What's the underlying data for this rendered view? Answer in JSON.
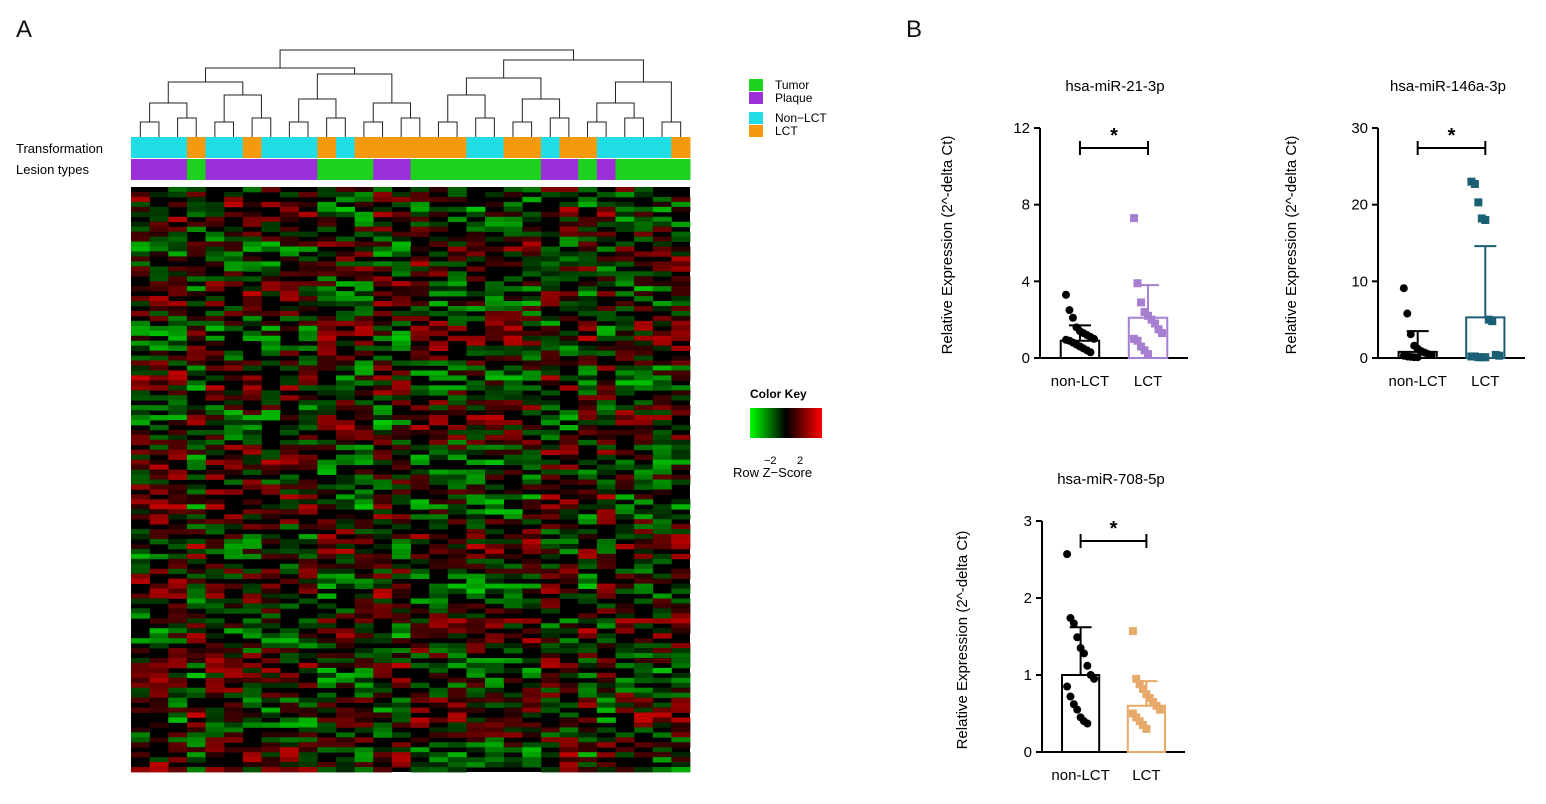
{
  "panels": {
    "a": "A",
    "b": "B"
  },
  "heatmap": {
    "row_labels": {
      "transformation": "Transformation",
      "lesion": "Lesion types"
    },
    "legend": [
      {
        "label": "Tumor",
        "color": "#1fd11f"
      },
      {
        "label": "Plaque",
        "color": "#9b30d8"
      },
      {
        "label": "Non−LCT",
        "color": "#22dde6"
      },
      {
        "label": "LCT",
        "color": "#f59a0c"
      }
    ],
    "color_key": {
      "title": "Color Key",
      "ticks": [
        "−2",
        "2"
      ],
      "caption": "Row Z−Score",
      "low": "#00ff00",
      "mid": "#000000",
      "high": "#ff0000"
    }
  },
  "chart_data": [
    {
      "type": "heatmap",
      "title": "",
      "columns": 30,
      "transformation": [
        "Non-LCT",
        "Non-LCT",
        "Non-LCT",
        "LCT",
        "Non-LCT",
        "Non-LCT",
        "LCT",
        "Non-LCT",
        "Non-LCT",
        "Non-LCT",
        "LCT",
        "Non-LCT",
        "LCT",
        "LCT",
        "LCT",
        "LCT",
        "LCT",
        "LCT",
        "Non-LCT",
        "Non-LCT",
        "LCT",
        "LCT",
        "Non-LCT",
        "LCT",
        "LCT",
        "Non-LCT",
        "Non-LCT",
        "Non-LCT",
        "Non-LCT",
        "LCT"
      ],
      "lesion_types": [
        "Plaque",
        "Plaque",
        "Plaque",
        "Tumor",
        "Plaque",
        "Plaque",
        "Plaque",
        "Plaque",
        "Plaque",
        "Plaque",
        "Tumor",
        "Tumor",
        "Tumor",
        "Plaque",
        "Plaque",
        "Tumor",
        "Tumor",
        "Tumor",
        "Tumor",
        "Tumor",
        "Tumor",
        "Tumor",
        "Plaque",
        "Plaque",
        "Tumor",
        "Plaque",
        "Tumor",
        "Tumor",
        "Tumor",
        "Tumor"
      ],
      "z_range": [
        -2,
        2
      ]
    },
    {
      "type": "bar",
      "title": "hsa-miR-21-3p",
      "ylabel": "Relative  Expression (2^-delta Ct)",
      "categories": [
        "non-LCT",
        "LCT"
      ],
      "values": [
        0.9,
        2.1
      ],
      "sd": [
        0.8,
        1.7
      ],
      "ylim": [
        0,
        12
      ],
      "yticks": [
        "0",
        "4",
        "8",
        "12"
      ],
      "significance": "*",
      "bar_colors": [
        "#000000",
        "#a67fd0"
      ],
      "points": [
        [
          3.3,
          2.5,
          2.1,
          1.6,
          1.4,
          1.3,
          1.2,
          1.1,
          1.0,
          0.95,
          0.9,
          0.8,
          0.7,
          0.6,
          0.5,
          0.4,
          0.3
        ],
        [
          7.3,
          3.9,
          2.9,
          2.4,
          2.2,
          2.0,
          1.8,
          1.5,
          1.3,
          1.0,
          0.9,
          0.6,
          0.4,
          0.2
        ]
      ]
    },
    {
      "type": "bar",
      "title": "hsa-miR-146a-3p",
      "ylabel": "Relative  Expression (2^-delta Ct)",
      "categories": [
        "non-LCT",
        "LCT"
      ],
      "values": [
        0.8,
        5.3
      ],
      "sd": [
        2.7,
        9.3
      ],
      "ylim": [
        0,
        30
      ],
      "yticks": [
        "0",
        "10",
        "20",
        "30"
      ],
      "significance": "*",
      "bar_colors": [
        "#000000",
        "#1a5f73"
      ],
      "points": [
        [
          9.1,
          5.8,
          3.1,
          1.6,
          1.2,
          0.9,
          0.7,
          0.5,
          0.4,
          0.3,
          0.2,
          0.15,
          0.1,
          0.1
        ],
        [
          23.0,
          22.7,
          20.3,
          18.2,
          18.0,
          5.0,
          4.8,
          0.4,
          0.3,
          0.2,
          0.2,
          0.1,
          0.1,
          0.1
        ]
      ]
    },
    {
      "type": "bar",
      "title": "hsa-miR-708-5p",
      "ylabel": "Relative  Expression (2^-delta Ct)",
      "categories": [
        "non-LCT",
        "LCT"
      ],
      "values": [
        1.0,
        0.6
      ],
      "sd": [
        0.62,
        0.32
      ],
      "ylim": [
        0,
        3
      ],
      "yticks": [
        "0",
        "1",
        "2",
        "3"
      ],
      "significance": "*",
      "bar_colors": [
        "#000000",
        "#e8aa6a"
      ],
      "points": [
        [
          2.57,
          1.74,
          1.67,
          1.49,
          1.35,
          1.28,
          1.12,
          1.0,
          0.95,
          0.85,
          0.72,
          0.62,
          0.55,
          0.45,
          0.4,
          0.37
        ],
        [
          1.57,
          0.95,
          0.88,
          0.82,
          0.75,
          0.7,
          0.65,
          0.6,
          0.55,
          0.5,
          0.45,
          0.4,
          0.35,
          0.3
        ]
      ]
    }
  ]
}
